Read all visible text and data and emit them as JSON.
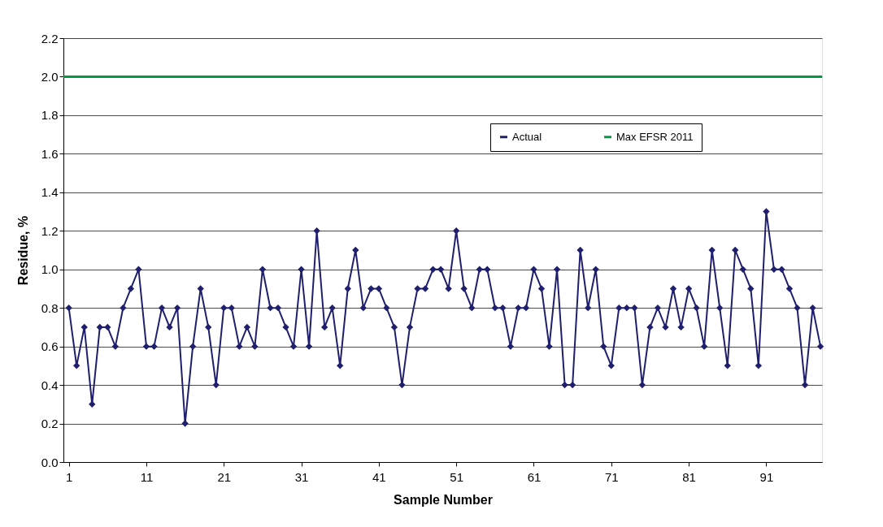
{
  "chart_data": {
    "type": "line",
    "xlabel": "Sample Number",
    "ylabel": "Residue, %",
    "x": [
      1,
      2,
      3,
      4,
      5,
      6,
      7,
      8,
      9,
      10,
      11,
      12,
      13,
      14,
      15,
      16,
      17,
      18,
      19,
      20,
      21,
      22,
      23,
      24,
      25,
      26,
      27,
      28,
      29,
      30,
      31,
      32,
      33,
      34,
      35,
      36,
      37,
      38,
      39,
      40,
      41,
      42,
      43,
      44,
      45,
      46,
      47,
      48,
      49,
      50,
      51,
      52,
      53,
      54,
      55,
      56,
      57,
      58,
      59,
      60,
      61,
      62,
      63,
      64,
      65,
      66,
      67,
      68,
      69,
      70,
      71,
      72,
      73,
      74,
      75,
      76,
      77,
      78,
      79,
      80,
      81,
      82,
      83,
      84,
      85,
      86,
      87,
      88,
      89,
      90,
      91,
      92,
      93,
      94,
      95,
      96,
      97,
      98
    ],
    "series": [
      {
        "name": "Actual",
        "color": "#1f1f6e",
        "marker": "diamond",
        "values": [
          0.8,
          0.5,
          0.7,
          0.3,
          0.7,
          0.7,
          0.6,
          0.8,
          0.9,
          1.0,
          0.6,
          0.6,
          0.8,
          0.7,
          0.8,
          0.2,
          0.6,
          0.9,
          0.7,
          0.4,
          0.8,
          0.8,
          0.6,
          0.7,
          0.6,
          1.0,
          0.8,
          0.8,
          0.7,
          0.6,
          1.0,
          0.6,
          1.2,
          0.7,
          0.8,
          0.5,
          0.9,
          1.1,
          0.8,
          0.9,
          0.9,
          0.8,
          0.7,
          0.4,
          0.7,
          0.9,
          0.9,
          1.0,
          1.0,
          0.9,
          1.2,
          0.9,
          0.8,
          1.0,
          1.0,
          0.8,
          0.8,
          0.6,
          0.8,
          0.8,
          1.0,
          0.9,
          0.6,
          1.0,
          0.4,
          0.4,
          1.1,
          0.8,
          1.0,
          0.6,
          0.5,
          0.8,
          0.8,
          0.8,
          0.4,
          0.7,
          0.8,
          0.7,
          0.9,
          0.7,
          0.9,
          0.8,
          0.6,
          1.1,
          0.8,
          0.5,
          1.1,
          1.0,
          0.9,
          0.5,
          1.3,
          1.0,
          1.0,
          0.9,
          0.8,
          0.4,
          0.8,
          0.6
        ]
      }
    ],
    "ref_lines": [
      {
        "axis": "y",
        "value": 2.0,
        "label": "Max EFSR 2011",
        "color": "#009a44"
      }
    ],
    "xlim": [
      0.3,
      98.2
    ],
    "xticks": [
      1,
      11,
      21,
      31,
      41,
      51,
      61,
      71,
      81,
      91
    ],
    "ylim": [
      0,
      2.2
    ],
    "yticks": [
      {
        "value": 0,
        "label": "0.0"
      },
      {
        "value": 0.2,
        "label": "0.2"
      },
      {
        "value": 0.4,
        "label": "0.4"
      },
      {
        "value": 0.6,
        "label": "0.6"
      },
      {
        "value": 0.8,
        "label": "0.8"
      },
      {
        "value": 1.0,
        "label": "1.0"
      },
      {
        "value": 1.2,
        "label": "1.2"
      },
      {
        "value": 1.4,
        "label": "1.4"
      },
      {
        "value": 1.6,
        "label": "1.6"
      },
      {
        "value": 1.8,
        "label": "1.8"
      },
      {
        "value": 2.0,
        "label": "2.0"
      },
      {
        "value": 2.2,
        "label": "2.2"
      }
    ],
    "grid": "y",
    "legend": "top right"
  }
}
